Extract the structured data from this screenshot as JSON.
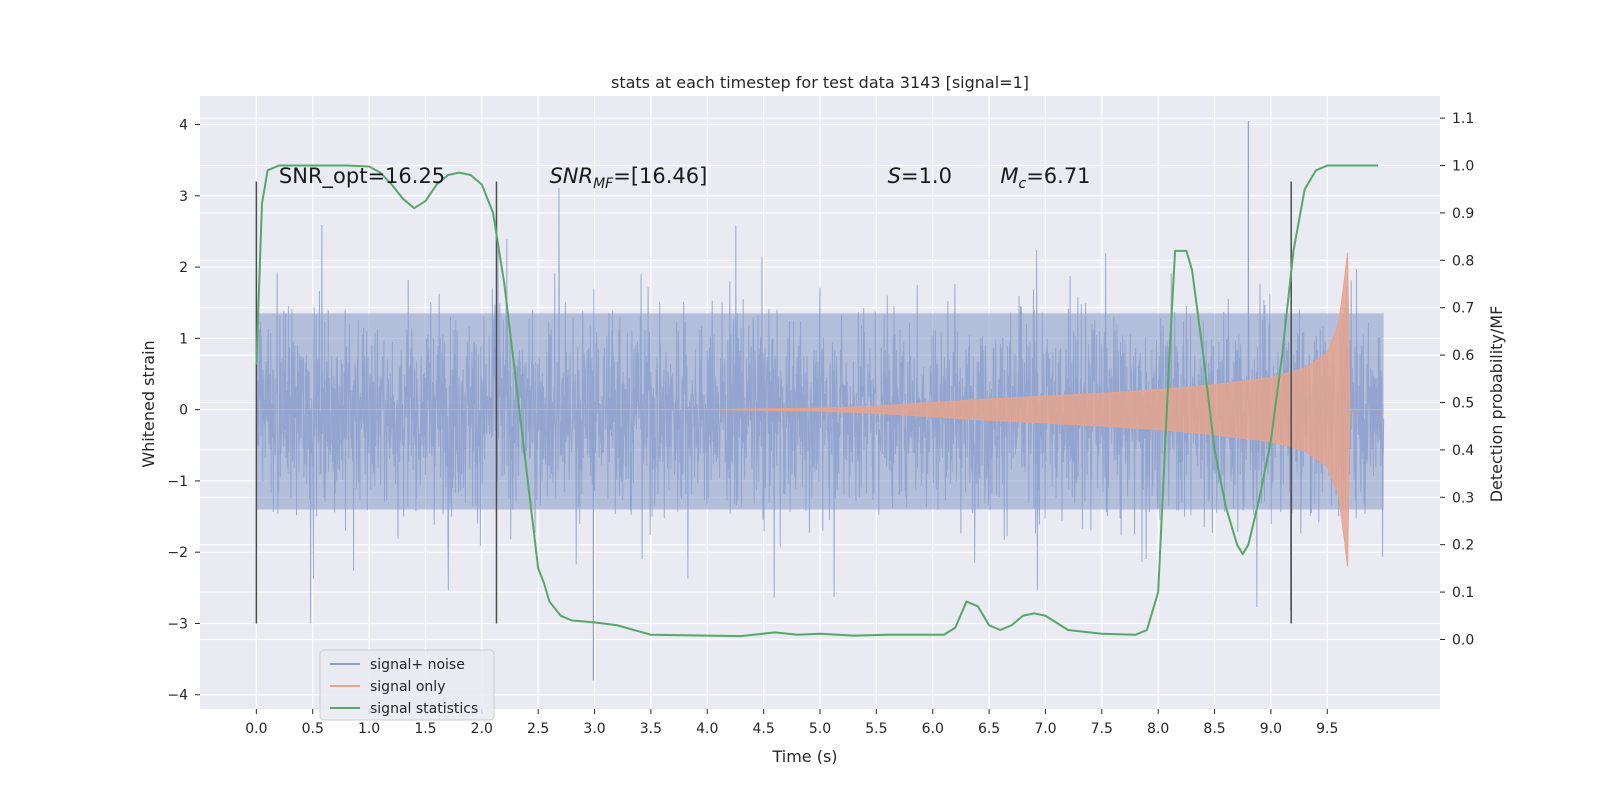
{
  "chart_data": {
    "type": "line",
    "title": "stats at each timestep for test data 3143 [signal=1]",
    "xlabel": "Time (s)",
    "ylabel": "Whitened strain",
    "y2label": "Detection probability/MF",
    "xlim": [
      -0.5,
      10.5
    ],
    "ylim": [
      -4.2,
      4.4
    ],
    "y2lim": [
      -0.1467,
      1.1467
    ],
    "xticks": [
      "0.0",
      "0.5",
      "1.0",
      "1.5",
      "2.0",
      "2.5",
      "3.0",
      "3.5",
      "4.0",
      "4.5",
      "5.0",
      "5.5",
      "6.0",
      "6.5",
      "7.0",
      "7.5",
      "8.0",
      "8.5",
      "9.0",
      "9.5"
    ],
    "yticks": [
      "−4",
      "−3",
      "−2",
      "−1",
      "0",
      "1",
      "2",
      "3",
      "4"
    ],
    "y2ticks": [
      "0.0",
      "0.1",
      "0.2",
      "0.3",
      "0.4",
      "0.5",
      "0.6",
      "0.7",
      "0.8",
      "0.9",
      "1.0",
      "1.1"
    ],
    "grid": true,
    "legend_position": "lower-left",
    "series": [
      {
        "name": "signal+ noise",
        "color": "#8da0cb",
        "axis": "left",
        "x_range": [
          0.0,
          10.0
        ],
        "amplitude_band": [
          -1.4,
          1.35
        ],
        "peak_excursions": [
          -3.8,
          4.05
        ]
      },
      {
        "name": "signal only",
        "color": "#e5a48e",
        "axis": "left",
        "chirp_envelope": {
          "x": [
            0.0,
            4.0,
            5.0,
            5.5,
            6.0,
            6.5,
            7.0,
            7.5,
            8.0,
            8.5,
            9.0,
            9.3,
            9.5,
            9.6,
            9.65,
            9.68,
            9.7,
            10.0
          ],
          "amplitude": [
            0.0,
            0.0,
            0.02,
            0.05,
            0.1,
            0.15,
            0.19,
            0.23,
            0.28,
            0.35,
            0.45,
            0.58,
            0.8,
            1.2,
            1.8,
            2.2,
            0.0,
            0.0
          ]
        }
      },
      {
        "name": "signal statistics",
        "color": "#55a868",
        "axis": "right",
        "x": [
          0.0,
          0.05,
          0.1,
          0.2,
          0.4,
          0.6,
          0.8,
          1.0,
          1.1,
          1.2,
          1.3,
          1.4,
          1.5,
          1.6,
          1.7,
          1.8,
          1.9,
          2.0,
          2.1,
          2.2,
          2.3,
          2.4,
          2.5,
          2.55,
          2.6,
          2.7,
          2.8,
          3.0,
          3.2,
          3.5,
          4.0,
          4.3,
          4.6,
          4.8,
          5.0,
          5.3,
          5.6,
          5.9,
          6.1,
          6.2,
          6.3,
          6.4,
          6.5,
          6.6,
          6.7,
          6.8,
          6.9,
          7.0,
          7.2,
          7.5,
          7.8,
          7.9,
          8.0,
          8.1,
          8.15,
          8.25,
          8.3,
          8.4,
          8.5,
          8.6,
          8.7,
          8.75,
          8.8,
          8.9,
          9.0,
          9.1,
          9.2,
          9.3,
          9.4,
          9.5,
          9.6,
          9.7,
          9.8,
          9.9,
          9.95
        ],
        "y": [
          0.58,
          0.92,
          0.99,
          1.0,
          1.0,
          1.0,
          1.0,
          0.998,
          0.985,
          0.96,
          0.93,
          0.91,
          0.925,
          0.96,
          0.98,
          0.985,
          0.98,
          0.96,
          0.9,
          0.75,
          0.55,
          0.35,
          0.15,
          0.12,
          0.08,
          0.05,
          0.04,
          0.036,
          0.03,
          0.01,
          0.008,
          0.007,
          0.015,
          0.01,
          0.012,
          0.008,
          0.01,
          0.01,
          0.01,
          0.025,
          0.08,
          0.07,
          0.03,
          0.02,
          0.03,
          0.05,
          0.055,
          0.05,
          0.02,
          0.012,
          0.01,
          0.02,
          0.1,
          0.6,
          0.82,
          0.82,
          0.78,
          0.6,
          0.4,
          0.28,
          0.2,
          0.18,
          0.2,
          0.3,
          0.42,
          0.6,
          0.82,
          0.95,
          0.99,
          1.0,
          1.0,
          1.0,
          1.0,
          1.0,
          1.0
        ]
      }
    ],
    "vertical_markers": [
      {
        "x": 0.0,
        "y": [
          -3.0,
          3.2
        ]
      },
      {
        "x": 2.13,
        "y": [
          -3.0,
          3.2
        ]
      },
      {
        "x": 9.18,
        "y": [
          -3.0,
          3.2
        ]
      }
    ],
    "annotations": [
      {
        "id": "snr-opt",
        "x": 0.2,
        "y": 3.18,
        "parts": [
          {
            "text": "SNR_opt=16.25",
            "style": "normal"
          }
        ]
      },
      {
        "id": "snr-mf",
        "x": 2.6,
        "y": 3.18,
        "parts": [
          {
            "text": "SNR",
            "style": "italic"
          },
          {
            "text": "MF",
            "style": "italic-sub"
          },
          {
            "text": "=[16.46]",
            "style": "normal"
          }
        ]
      },
      {
        "id": "s-value",
        "x": 5.6,
        "y": 3.18,
        "parts": [
          {
            "text": "S",
            "style": "italic"
          },
          {
            "text": "=1.0",
            "style": "normal"
          }
        ]
      },
      {
        "id": "mc-value",
        "x": 6.6,
        "y": 3.18,
        "parts": [
          {
            "text": "M",
            "style": "italic"
          },
          {
            "text": "c",
            "style": "italic-sub"
          },
          {
            "text": "=6.71",
            "style": "normal"
          }
        ]
      }
    ]
  }
}
